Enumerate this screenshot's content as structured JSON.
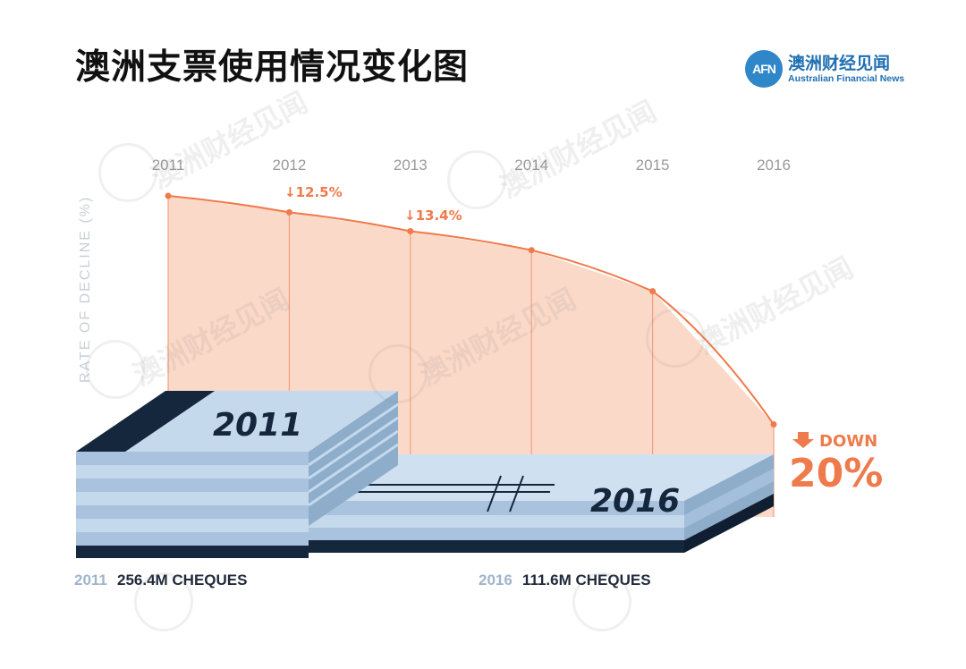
{
  "title": "澳洲支票使用情况变化图",
  "logo": {
    "mark": "AFN",
    "name": "澳洲财经见闻",
    "subtitle": "Australian Financial News"
  },
  "chart_data": {
    "type": "area",
    "ylabel": "RATE OF DECLINE (%)",
    "categories": [
      "2011",
      "2012",
      "2013",
      "2014",
      "2015",
      "2016"
    ],
    "values": [
      256.4,
      246,
      234,
      222,
      196,
      111.6
    ],
    "annotations": [
      {
        "after": "2012",
        "text": "↓12.5%"
      },
      {
        "after": "2013",
        "text": "↓13.4%"
      }
    ],
    "callout": {
      "word": "DOWN",
      "value": "20%"
    },
    "stacks": [
      {
        "year": "2011",
        "label": "2011",
        "caption_year": "2011",
        "caption_value": "256.4M CHEQUES"
      },
      {
        "year": "2016",
        "label": "2016",
        "caption_year": "2016",
        "caption_value": "111.6M CHEQUES"
      }
    ],
    "grid": false,
    "colors": {
      "line": "#ef7a4b",
      "fill": "#fbd9c8",
      "stack_light": "#c5d9ec",
      "stack_mid": "#8eadcb",
      "stack_dark": "#15273d"
    }
  }
}
